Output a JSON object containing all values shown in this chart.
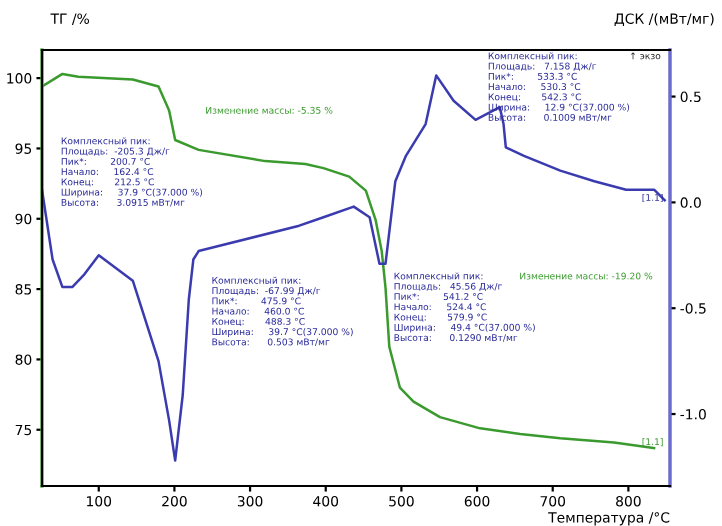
{
  "chart_data": {
    "type": "line",
    "xlabel": "Температура /°C",
    "ylabel": "ТГ /%",
    "y2label": "ДСК /(мВт/мг)",
    "xlim": [
      25,
      855
    ],
    "xticks": [
      100,
      200,
      300,
      400,
      500,
      600,
      700,
      800
    ],
    "ylim": [
      71,
      102
    ],
    "yticks": [
      75,
      80,
      85,
      90,
      95,
      100
    ],
    "y2lim": [
      -1.34,
      0.72
    ],
    "y2ticks": [
      {
        "value": 0.5,
        "label": "0.5"
      },
      {
        "value": 0,
        "label": "0.0"
      },
      {
        "value": -0.5,
        "label": "-0.5"
      },
      {
        "value": -1,
        "label": "-1.0"
      }
    ],
    "grid": false,
    "legend": false,
    "marker": "none",
    "line_style": "solid",
    "series": [
      {
        "color": "#3a9a2e",
        "x": [
          25,
          52,
          73,
          145,
          179,
          193,
          201,
          232,
          320,
          373,
          397,
          431,
          453,
          466,
          474,
          479,
          484,
          498,
          516,
          551,
          604,
          657,
          710,
          781,
          834
        ],
        "values": [
          99.4,
          100.3,
          100.1,
          99.9,
          99.4,
          97.7,
          95.6,
          94.9,
          94.1,
          93.9,
          93.6,
          93.0,
          92.0,
          89.9,
          87.7,
          85.1,
          80.9,
          78.0,
          77.0,
          75.9,
          75.1,
          74.7,
          74.4,
          74.1,
          73.7
        ]
      },
      {
        "color": "#3b3bb0",
        "axis": "y2",
        "x": [
          25,
          39,
          52,
          65,
          81,
          100,
          145,
          179,
          193,
          201,
          211,
          219,
          225,
          232,
          365,
          397,
          437,
          458,
          471,
          479,
          492,
          506,
          532,
          546,
          569,
          598,
          630,
          635,
          638,
          662,
          710,
          755,
          797,
          834,
          848
        ],
        "values": [
          0.06,
          -0.27,
          -0.4,
          -0.4,
          -0.34,
          -0.25,
          -0.37,
          -0.75,
          -1.03,
          -1.22,
          -0.91,
          -0.46,
          -0.27,
          -0.23,
          -0.11,
          -0.07,
          -0.02,
          -0.07,
          -0.29,
          -0.29,
          0.1,
          0.22,
          0.37,
          0.6,
          0.48,
          0.39,
          0.45,
          0.37,
          0.26,
          0.22,
          0.15,
          0.1,
          0.06,
          0.06,
          0.01
        ]
      }
    ],
    "annotations": [
      "Комплексный пик:\nПлощадь:  -205.3 Дж/г\nПик*:        200.7 °C\nНачало:     162.4 °C\nКонец:       212.5 °C\nШирина:     37.9 °C(37.000 %)\nВысота:      3.0915 мВт/мг",
      "Комплексный пик:\nПлощадь:  -67.99 Дж/г\nПик*:        475.9 °C\nНачало:     460.0 °C\nКонец:       488.3 °C\nШирина:     39.7 °C(37.000 %)\nВысота:      0.503 мВт/мг",
      "Комплексный пик:\nПлощадь:   7.158 Дж/г\nПик*:        533.3 °C\nНачало:     530.3 °C\nКонец:       542.3 °C\nШирина:     12.9 °C(37.000 %)\nВысота:      0.1009 мВт/мг",
      "Комплексный пик:\nПлощадь:   45.56 Дж/г\nПик*:        541.2 °C\nНачало:     524.4 °C\nКонец:       579.9 °C\nШирина:     49.4 °C(37.000 %)\nВысота:      0.1290 мВт/мг",
      "Изменение массы: -5.35 %",
      "Изменение массы: -19.20 %",
      "↑ экзо",
      "[1.1]",
      "[1.1]"
    ]
  }
}
